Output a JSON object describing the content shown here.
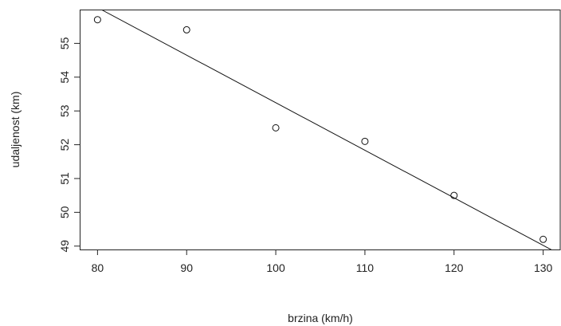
{
  "chart_data": {
    "type": "scatter",
    "title": "",
    "xlabel": "brzina (km/h)",
    "ylabel": "udaljenost (km)",
    "xlim": [
      78,
      132
    ],
    "ylim": [
      48.9,
      56.0
    ],
    "xticks": [
      80,
      90,
      100,
      110,
      120,
      130
    ],
    "yticks": [
      49,
      50,
      51,
      52,
      53,
      54,
      55
    ],
    "x_tick_labels": [
      "80",
      "90",
      "100",
      "110",
      "120",
      "130"
    ],
    "y_tick_labels": [
      "49",
      "50",
      "51",
      "52",
      "53",
      "54",
      "55"
    ],
    "points": {
      "x": [
        80,
        90,
        100,
        110,
        120,
        130
      ],
      "y": [
        55.7,
        55.4,
        52.5,
        52.1,
        50.5,
        49.2
      ]
    },
    "regression_line": {
      "x": [
        78,
        132
      ],
      "y": [
        56.34,
        48.74
      ]
    },
    "grid": false,
    "legend": "none"
  }
}
